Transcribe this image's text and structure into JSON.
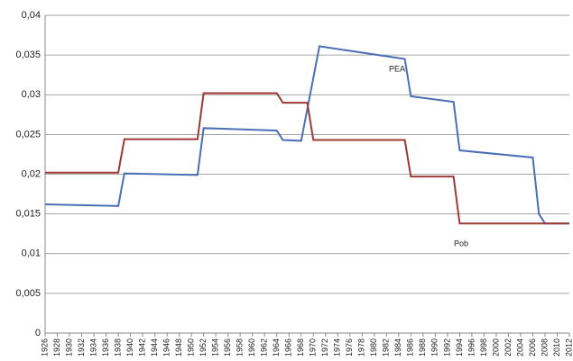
{
  "chart_data": {
    "type": "line",
    "xlim": [
      1926,
      2012
    ],
    "xticks": [
      1926,
      1928,
      1930,
      1932,
      1934,
      1936,
      1938,
      1940,
      1942,
      1944,
      1946,
      1948,
      1950,
      1952,
      1954,
      1956,
      1958,
      1960,
      1962,
      1964,
      1966,
      1968,
      1970,
      1972,
      1974,
      1976,
      1978,
      1980,
      1982,
      1984,
      1986,
      1988,
      1990,
      1992,
      1994,
      1996,
      1998,
      2000,
      2002,
      2004,
      2006,
      2008,
      2010,
      2012
    ],
    "ylim": [
      0,
      0.04
    ],
    "yticks": [
      0,
      {
        "value": 0.005,
        "label": "0,005"
      },
      {
        "value": 0.01,
        "label": "0,01"
      },
      {
        "value": 0.015,
        "label": "0,015"
      },
      {
        "value": 0.02,
        "label": "0,02"
      },
      {
        "value": 0.025,
        "label": "0,025"
      },
      {
        "value": 0.03,
        "label": "0,03"
      },
      {
        "value": 0.035,
        "label": "0,035"
      },
      {
        "value": 0.04,
        "label": "0,04"
      }
    ],
    "grid": true,
    "series": [
      {
        "name": "PEA",
        "color": "#4a6fb5",
        "x": [
          1926,
          1938,
          1939,
          1951,
          1952,
          1964,
          1965,
          1968,
          1971,
          1985,
          1986,
          1993,
          1994,
          2006,
          2007,
          2008,
          2012
        ],
        "values": [
          0.0162,
          0.016,
          0.0201,
          0.0199,
          0.0258,
          0.0255,
          0.0243,
          0.0242,
          0.0361,
          0.0345,
          0.0298,
          0.0291,
          0.023,
          0.0221,
          0.015,
          0.0138,
          0.0138
        ]
      },
      {
        "name": "Pob",
        "color": "#9e3a36",
        "x": [
          1926,
          1938,
          1939,
          1951,
          1952,
          1964,
          1965,
          1969,
          1970,
          1985,
          1986,
          1993,
          1994,
          2012
        ],
        "values": [
          0.0202,
          0.0202,
          0.0244,
          0.0244,
          0.0302,
          0.0302,
          0.029,
          0.029,
          0.0243,
          0.0243,
          0.0197,
          0.0197,
          0.0138,
          0.0138
        ]
      }
    ]
  }
}
